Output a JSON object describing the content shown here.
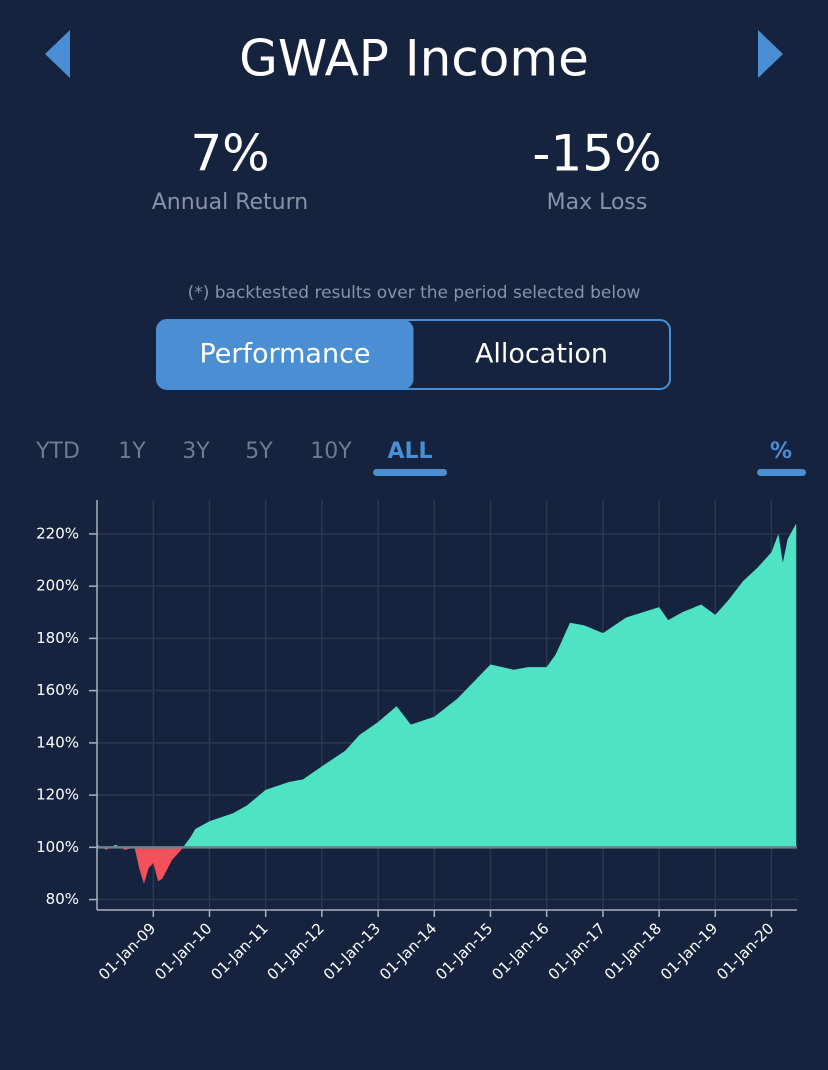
{
  "header": {
    "title": "GWAP Income"
  },
  "stats": [
    {
      "value": "7%",
      "label": "Annual Return"
    },
    {
      "value": "-15%",
      "label": "Max Loss"
    }
  ],
  "note": "(*) backtested results over the period selected below",
  "tabs": [
    "Performance",
    "Allocation"
  ],
  "active_tab": 0,
  "ranges": [
    "YTD",
    "1Y",
    "3Y",
    "5Y",
    "10Y",
    "ALL"
  ],
  "active_range": 5,
  "unit_toggle": "%",
  "chart_data": {
    "type": "area",
    "baseline": 100,
    "color_above": "#4de3c4",
    "color_below": "#f2505a",
    "grid": true,
    "x": [
      "2008-01-01",
      "2008-03-01",
      "2008-05-01",
      "2008-07-01",
      "2008-09-01",
      "2008-10-01",
      "2008-11-01",
      "2008-12-01",
      "2009-01-01",
      "2009-02-01",
      "2009-03-01",
      "2009-05-01",
      "2009-07-01",
      "2009-09-01",
      "2009-10-01",
      "2010-01-01",
      "2010-06-01",
      "2010-09-01",
      "2011-01-01",
      "2011-06-01",
      "2011-09-01",
      "2012-01-01",
      "2012-06-01",
      "2012-09-01",
      "2013-01-01",
      "2013-05-01",
      "2013-08-01",
      "2014-01-01",
      "2014-06-01",
      "2015-01-01",
      "2015-06-01",
      "2015-09-01",
      "2016-01-01",
      "2016-03-01",
      "2016-06-01",
      "2016-09-01",
      "2017-01-01",
      "2017-06-01",
      "2018-01-01",
      "2018-03-01",
      "2018-06-01",
      "2018-10-01",
      "2019-01-01",
      "2019-04-01",
      "2019-07-01",
      "2019-10-01",
      "2020-01-01",
      "2020-02-15",
      "2020-03-15",
      "2020-04-15",
      "2020-06-10"
    ],
    "values": [
      101,
      99,
      101,
      99,
      100,
      92,
      86,
      92,
      94,
      87,
      88,
      95,
      99,
      104,
      107,
      110,
      113,
      116,
      122,
      125,
      126,
      131,
      137,
      143,
      148,
      154,
      147,
      150,
      157,
      170,
      168,
      169,
      169,
      174,
      186,
      185,
      182,
      188,
      192,
      187,
      190,
      193,
      189,
      195,
      202,
      207,
      213,
      220,
      209,
      218,
      224
    ],
    "xlim": [
      "2008-01-01",
      "2020-06-15"
    ],
    "xticks": [
      {
        "value": "2009-01-01",
        "label": "01-Jan-09"
      },
      {
        "value": "2010-01-01",
        "label": "01-Jan-10"
      },
      {
        "value": "2011-01-01",
        "label": "01-Jan-11"
      },
      {
        "value": "2012-01-01",
        "label": "01-Jan-12"
      },
      {
        "value": "2013-01-01",
        "label": "01-Jan-13"
      },
      {
        "value": "2014-01-01",
        "label": "01-Jan-14"
      },
      {
        "value": "2015-01-01",
        "label": "01-Jan-15"
      },
      {
        "value": "2016-01-01",
        "label": "01-Jan-16"
      },
      {
        "value": "2017-01-01",
        "label": "01-Jan-17"
      },
      {
        "value": "2018-01-01",
        "label": "01-Jan-18"
      },
      {
        "value": "2019-01-01",
        "label": "01-Jan-19"
      },
      {
        "value": "2020-01-01",
        "label": "01-Jan-20"
      }
    ],
    "ylim": [
      76,
      233
    ],
    "yticks": [
      {
        "value": 80,
        "label": "80%"
      },
      {
        "value": 100,
        "label": "100%"
      },
      {
        "value": 120,
        "label": "120%"
      },
      {
        "value": 140,
        "label": "140%"
      },
      {
        "value": 160,
        "label": "160%"
      },
      {
        "value": 180,
        "label": "180%"
      },
      {
        "value": 200,
        "label": "200%"
      },
      {
        "value": 220,
        "label": "220%"
      }
    ]
  }
}
